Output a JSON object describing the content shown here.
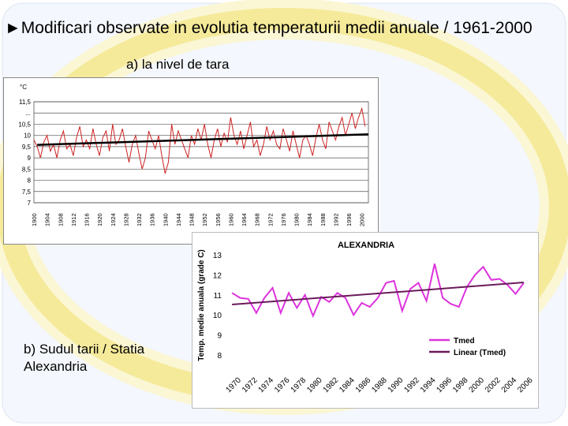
{
  "slide": {
    "title": "►Modificari observate in evolutia temperaturii medii anuale / 1961-2000",
    "subtitle_a": "a) la nivel de tara",
    "subtitle_b_line1": "b) Sudul tarii / Statia",
    "subtitle_b_line2": "Alexandria",
    "bg_color": "#f4f7fd",
    "ring_color": "#f5ea9a",
    "ring_light": "#fbf6d3"
  },
  "chart_data": [
    {
      "type": "line",
      "title": "",
      "ylabel": "°C",
      "ylim": [
        7,
        11.5
      ],
      "yticks": [
        "11,5",
        "...",
        "10,5",
        "10",
        "9,5",
        "9",
        "8,5",
        "8",
        "7,5",
        "7"
      ],
      "ytick_values": [
        11.5,
        11,
        10.5,
        10,
        9.5,
        9,
        8.5,
        8,
        7.5,
        7
      ],
      "xticks": [
        "1900",
        "1904",
        "1908",
        "1912",
        "1916",
        "1920",
        "1924",
        "1928",
        "1932",
        "1936",
        "1940",
        "1944",
        "1948",
        "1952",
        "1956",
        "1960",
        "1964",
        "1968",
        "1972",
        "1976",
        "1980",
        "1984",
        "1988",
        "1992",
        "1996",
        "2000"
      ],
      "xlim": [
        1900,
        2002
      ],
      "grid": true,
      "series": [
        {
          "color": "#cc2222",
          "x_start": 1900,
          "values": [
            9.8,
            9.5,
            9.0,
            9.7,
            10.0,
            9.3,
            9.6,
            9.0,
            9.8,
            10.2,
            9.4,
            9.6,
            9.1,
            9.9,
            10.4,
            9.5,
            9.8,
            9.4,
            10.3,
            9.6,
            9.1,
            9.9,
            10.2,
            9.3,
            10.5,
            9.6,
            9.8,
            10.3,
            9.5,
            8.8,
            9.6,
            10.0,
            9.2,
            8.5,
            9.0,
            10.2,
            9.8,
            9.4,
            10.0,
            9.1,
            8.3,
            8.8,
            10.5,
            9.6,
            10.2,
            9.8,
            9.4,
            9.0,
            10.0,
            9.6,
            10.3,
            9.8,
            10.5,
            9.6,
            9.0,
            9.8,
            10.3,
            9.5,
            10.1,
            9.7,
            10.8,
            10.0,
            9.6,
            10.2,
            9.4,
            10.0,
            10.6,
            9.5,
            9.8,
            9.1,
            9.6,
            10.4,
            9.8,
            10.2,
            9.6,
            9.4,
            10.3,
            9.8,
            9.3,
            10.2,
            9.6,
            9.0,
            9.8,
            10.0,
            9.6,
            9.1,
            9.9,
            10.5,
            9.8,
            9.4,
            10.6,
            10.2,
            9.8,
            10.4,
            10.8,
            10.0,
            10.5,
            11.0,
            10.3,
            10.8,
            11.2,
            10.4
          ]
        },
        {
          "color": "#000000",
          "trend_start": 9.58,
          "trend_end": 10.05
        }
      ]
    },
    {
      "type": "line",
      "title": "ALEXANDRIA",
      "ylabel": "Temp. medie anuala (grade C)",
      "ylim": [
        8,
        13
      ],
      "yticks": [
        "13",
        "12",
        "11",
        "10",
        "9",
        "8"
      ],
      "ytick_values": [
        13,
        12,
        11,
        10,
        9,
        8
      ],
      "xticks": [
        "1970",
        "1972",
        "1974",
        "1976",
        "1978",
        "1980",
        "1982",
        "1984",
        "1986",
        "1988",
        "1990",
        "1992",
        "1994",
        "1996",
        "1998",
        "2000",
        "2002",
        "2004",
        "2006"
      ],
      "xlim": [
        1969.5,
        2006.5
      ],
      "legend": "right",
      "series": [
        {
          "name": "Tmed",
          "color": "#dd33dd",
          "x": [
            1970,
            1971,
            1972,
            1973,
            1974,
            1975,
            1976,
            1977,
            1978,
            1979,
            1980,
            1981,
            1982,
            1983,
            1984,
            1985,
            1986,
            1987,
            1988,
            1989,
            1990,
            1991,
            1992,
            1993,
            1994,
            1995,
            1996,
            1997,
            1998,
            1999,
            2000,
            2001,
            2002,
            2003,
            2004,
            2005,
            2006
          ],
          "values": [
            11.1,
            10.85,
            10.8,
            10.1,
            10.85,
            11.35,
            10.1,
            11.1,
            10.35,
            11.0,
            9.95,
            10.9,
            10.65,
            11.1,
            10.85,
            10.0,
            10.6,
            10.4,
            10.85,
            11.6,
            11.7,
            10.2,
            11.3,
            11.6,
            10.7,
            12.55,
            10.85,
            10.55,
            10.4,
            11.4,
            12.0,
            12.4,
            11.75,
            11.8,
            11.5,
            11.05,
            11.6
          ]
        },
        {
          "name": "Linear (Tmed)",
          "color": "#6a1a5a",
          "trend_start": 10.52,
          "trend_end": 11.62
        }
      ]
    }
  ]
}
